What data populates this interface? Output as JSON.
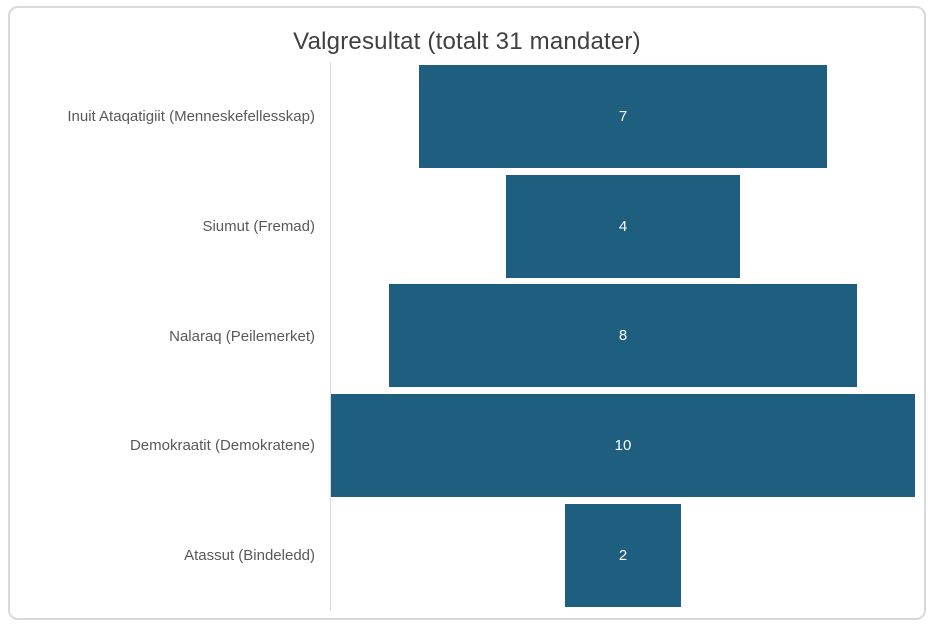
{
  "chart_data": {
    "type": "bar",
    "subtype": "horizontal-centered-funnel",
    "title": "Valgresultat (totalt 31 mandater)",
    "categories": [
      "Inuit Ataqatigiit (Menneskefellesskap)",
      "Siumut (Fremad)",
      "Nalaraq (Peilemerket)",
      "Demokraatit (Demokratene)",
      "Atassut (Bindeledd)"
    ],
    "values": [
      7,
      4,
      8,
      10,
      2
    ],
    "total_label_in_title": 31,
    "xlim": [
      0,
      10
    ],
    "grid": false,
    "legend": "none",
    "value_labels_position": "center",
    "colors": {
      "bar": "#1E5F80",
      "value_label": "#FFFFFF",
      "category_label": "#595959",
      "title": "#404040",
      "axis_line": "#D9D9D9",
      "chart_border": "#D9D9D9",
      "background": "#FFFFFF"
    }
  }
}
